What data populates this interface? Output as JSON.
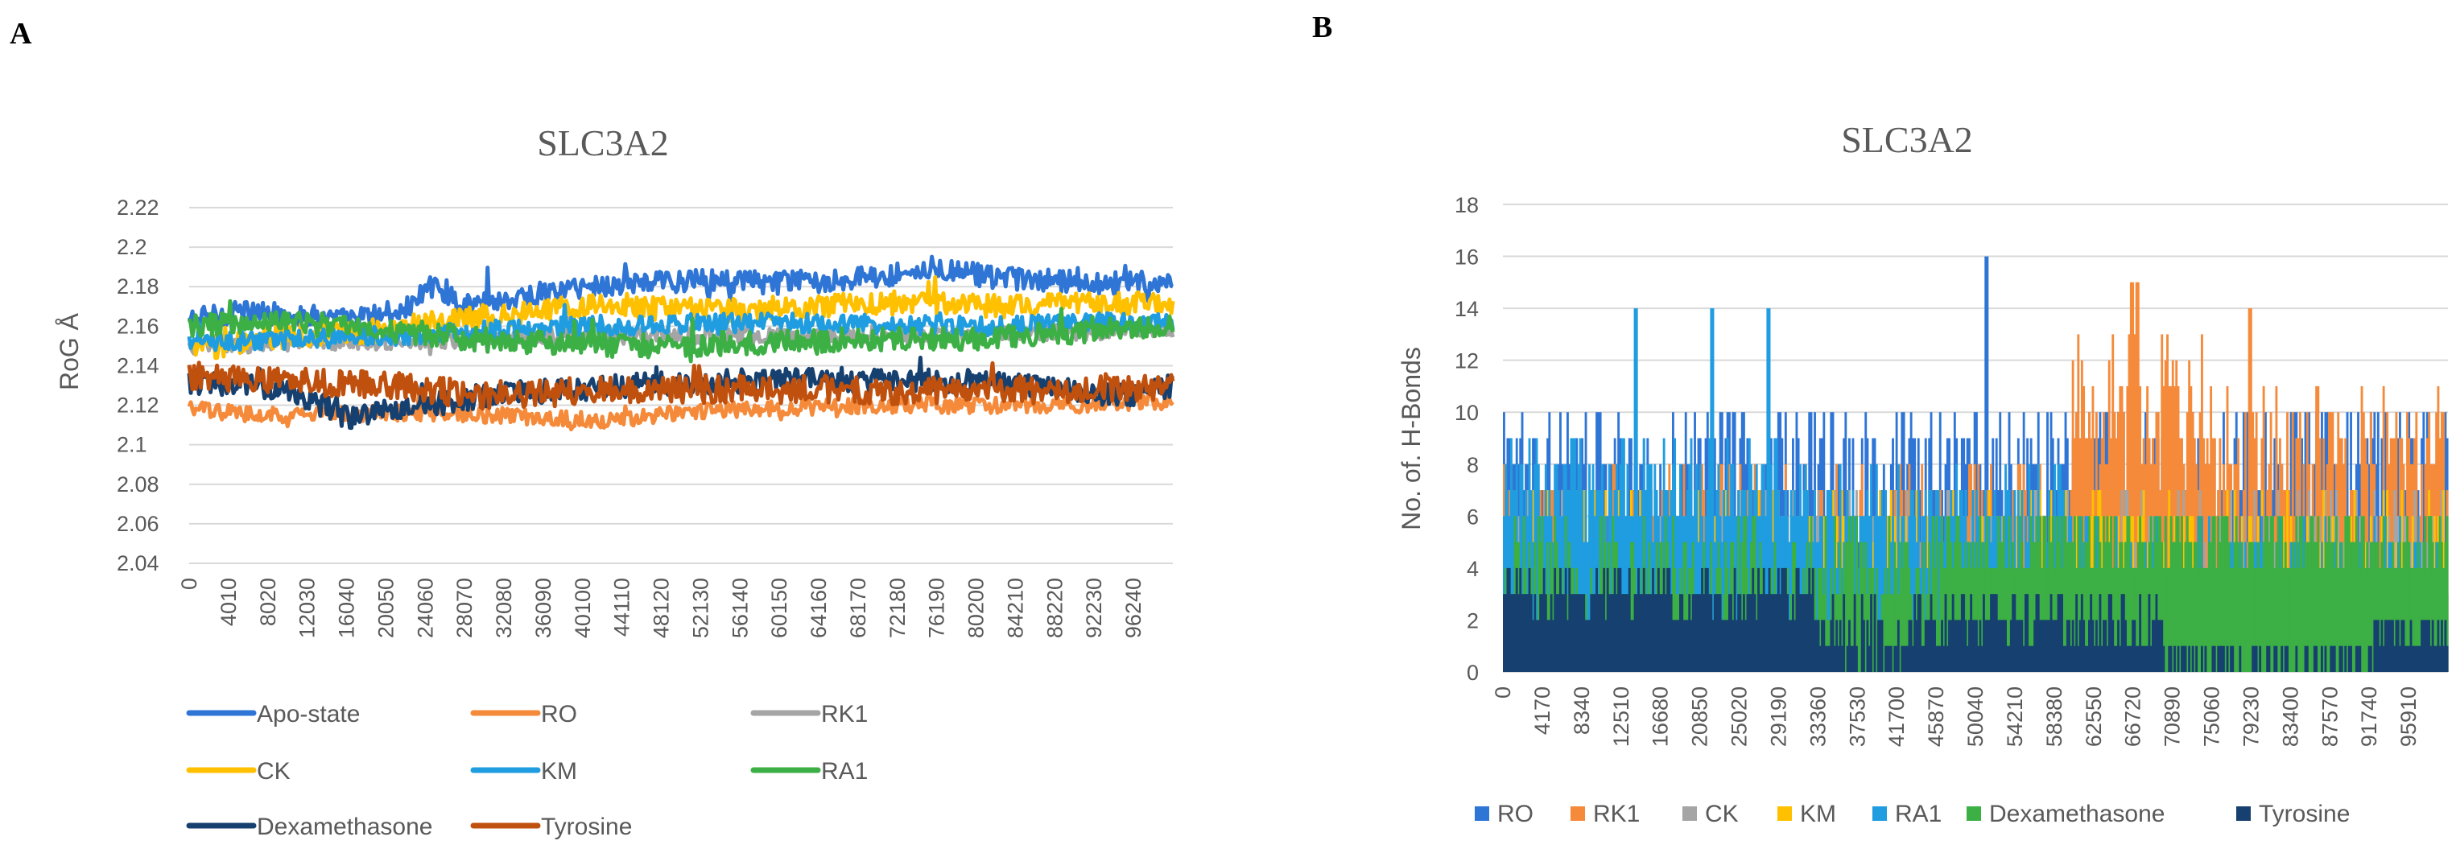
{
  "panels": [
    {
      "label": "A"
    },
    {
      "label": "B"
    }
  ],
  "chart_data": [
    {
      "type": "line",
      "title": "SLC3A2",
      "xlabel": "",
      "ylabel": "RoG Å",
      "ylim": [
        2.04,
        2.22
      ],
      "yticks": [
        "2.04",
        "2.06",
        "2.08",
        "2.1",
        "2.12",
        "2.14",
        "2.16",
        "2.18",
        "2.2",
        "2.22"
      ],
      "xlim": [
        0,
        100000
      ],
      "xticks": [
        "0",
        "4010",
        "8020",
        "12030",
        "16040",
        "20050",
        "24060",
        "28070",
        "32080",
        "36090",
        "40100",
        "44110",
        "48120",
        "52130",
        "56140",
        "60150",
        "64160",
        "68170",
        "72180",
        "76190",
        "80200",
        "84210",
        "88220",
        "92230",
        "96240"
      ],
      "grid": true,
      "legend": "bottom",
      "series": [
        {
          "name": "Apo-state",
          "color": "#2E75D6",
          "base": [
            [
              0,
              2.163
            ],
            [
              5000,
              2.167
            ],
            [
              10000,
              2.166
            ],
            [
              16000,
              2.163
            ],
            [
              22000,
              2.168
            ],
            [
              25000,
              2.182
            ],
            [
              28000,
              2.17
            ],
            [
              34000,
              2.175
            ],
            [
              40000,
              2.18
            ],
            [
              50000,
              2.183
            ],
            [
              60000,
              2.182
            ],
            [
              70000,
              2.185
            ],
            [
              76000,
              2.19
            ],
            [
              82000,
              2.184
            ],
            [
              90000,
              2.182
            ],
            [
              100000,
              2.182
            ]
          ],
          "noise": 0.006
        },
        {
          "name": "RO",
          "color": "#F58A3A",
          "base": [
            [
              0,
              2.118
            ],
            [
              8000,
              2.115
            ],
            [
              20000,
              2.116
            ],
            [
              30000,
              2.115
            ],
            [
              44000,
              2.112
            ],
            [
              50000,
              2.117
            ],
            [
              70000,
              2.12
            ],
            [
              90000,
              2.12
            ],
            [
              100000,
              2.122
            ]
          ],
          "noise": 0.004
        },
        {
          "name": "RK1",
          "color": "#A5A5A5",
          "base": [
            [
              0,
              2.15
            ],
            [
              20000,
              2.152
            ],
            [
              40000,
              2.155
            ],
            [
              60000,
              2.155
            ],
            [
              80000,
              2.156
            ],
            [
              100000,
              2.158
            ]
          ],
          "noise": 0.004
        },
        {
          "name": "CK",
          "color": "#FFC000",
          "base": [
            [
              0,
              2.148
            ],
            [
              10000,
              2.155
            ],
            [
              20000,
              2.158
            ],
            [
              30000,
              2.165
            ],
            [
              40000,
              2.17
            ],
            [
              55000,
              2.168
            ],
            [
              70000,
              2.172
            ],
            [
              85000,
              2.17
            ],
            [
              100000,
              2.172
            ]
          ],
          "noise": 0.006
        },
        {
          "name": "KM",
          "color": "#1F9DE0",
          "base": [
            [
              0,
              2.152
            ],
            [
              20000,
              2.155
            ],
            [
              40000,
              2.16
            ],
            [
              60000,
              2.162
            ],
            [
              80000,
              2.16
            ],
            [
              100000,
              2.163
            ]
          ],
          "noise": 0.005
        },
        {
          "name": "RA1",
          "color": "#3CAF45",
          "base": [
            [
              0,
              2.16
            ],
            [
              10000,
              2.162
            ],
            [
              20000,
              2.158
            ],
            [
              30000,
              2.153
            ],
            [
              45000,
              2.15
            ],
            [
              60000,
              2.152
            ],
            [
              80000,
              2.154
            ],
            [
              100000,
              2.16
            ]
          ],
          "noise": 0.006
        },
        {
          "name": "Dexamethasone",
          "color": "#16406F",
          "base": [
            [
              0,
              2.132
            ],
            [
              10000,
              2.128
            ],
            [
              16000,
              2.114
            ],
            [
              22000,
              2.118
            ],
            [
              30000,
              2.125
            ],
            [
              45000,
              2.13
            ],
            [
              60000,
              2.133
            ],
            [
              80000,
              2.132
            ],
            [
              95000,
              2.125
            ],
            [
              100000,
              2.13
            ]
          ],
          "noise": 0.006
        },
        {
          "name": "Tyrosine",
          "color": "#C0500E",
          "base": [
            [
              0,
              2.135
            ],
            [
              10000,
              2.132
            ],
            [
              20000,
              2.13
            ],
            [
              30000,
              2.125
            ],
            [
              45000,
              2.128
            ],
            [
              60000,
              2.128
            ],
            [
              80000,
              2.127
            ],
            [
              100000,
              2.13
            ]
          ],
          "noise": 0.007
        }
      ]
    },
    {
      "type": "bar",
      "title": "SLC3A2",
      "xlabel": "",
      "ylabel": "No. of. H-Bonds",
      "ylim": [
        0,
        18
      ],
      "yticks": [
        "0",
        "2",
        "4",
        "6",
        "8",
        "10",
        "12",
        "14",
        "16",
        "18"
      ],
      "xlim": [
        0,
        100000
      ],
      "xticks": [
        "0",
        "4170",
        "8340",
        "12510",
        "16680",
        "20850",
        "25020",
        "29190",
        "33360",
        "37530",
        "41700",
        "45870",
        "50040",
        "54210",
        "58380",
        "62550",
        "66720",
        "70890",
        "75060",
        "79230",
        "83400",
        "87570",
        "91740",
        "95910"
      ],
      "grid": true,
      "legend": "bottom",
      "series": [
        {
          "name": "RO",
          "color": "#2E75D6",
          "segments": [
            [
              0,
              100000,
              7.5,
              3
            ]
          ],
          "peaks": [
            [
              51000,
              16
            ]
          ]
        },
        {
          "name": "RK1",
          "color": "#F58A3A",
          "segments": [
            [
              0,
              60000,
              6,
              2
            ],
            [
              60000,
              75000,
              10,
              3
            ],
            [
              75000,
              100000,
              8,
              3
            ]
          ],
          "peaks": [
            [
              66500,
              15
            ],
            [
              67000,
              15
            ],
            [
              79000,
              14
            ]
          ]
        },
        {
          "name": "CK",
          "color": "#A5A5A5",
          "segments": [
            [
              0,
              100000,
              5,
              2
            ]
          ],
          "peaks": []
        },
        {
          "name": "KM",
          "color": "#FFC000",
          "segments": [
            [
              0,
              100000,
              5,
              2
            ]
          ],
          "peaks": []
        },
        {
          "name": "RA1",
          "color": "#1F9DE0",
          "segments": [
            [
              0,
              32000,
              7,
              2
            ],
            [
              32000,
              60000,
              6,
              2
            ],
            [
              60000,
              100000,
              4,
              2
            ]
          ],
          "peaks": [
            [
              14000,
              14
            ],
            [
              22000,
              14
            ],
            [
              28000,
              14
            ]
          ]
        },
        {
          "name": "Dexamethasone",
          "color": "#3CAF45",
          "segments": [
            [
              0,
              46000,
              4,
              2
            ],
            [
              46000,
              100000,
              5,
              1.5
            ]
          ],
          "peaks": []
        },
        {
          "name": "Tyrosine",
          "color": "#16406F",
          "segments": [
            [
              0,
              33000,
              3,
              1
            ],
            [
              33000,
              47000,
              1.5,
              1.5
            ],
            [
              47000,
              70000,
              2,
              1
            ],
            [
              70000,
              92000,
              0.5,
              0.5
            ],
            [
              92000,
              100000,
              1.5,
              1
            ]
          ],
          "peaks": []
        }
      ]
    }
  ]
}
